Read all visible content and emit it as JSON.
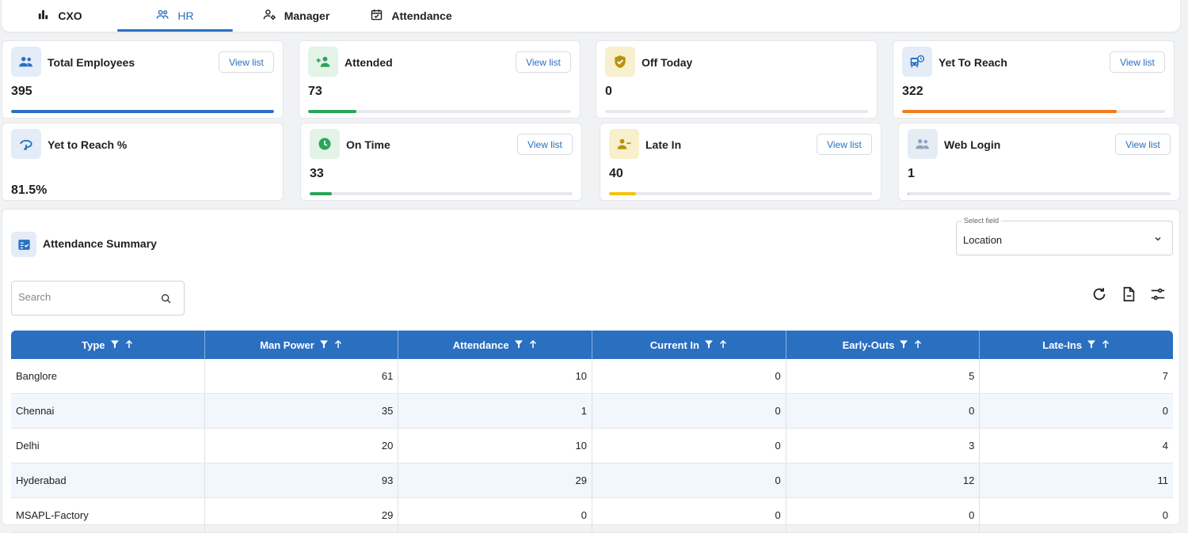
{
  "nav": {
    "tabs": [
      {
        "label": "CXO",
        "icon": "bar-chart-icon"
      },
      {
        "label": "HR",
        "icon": "people-icon"
      },
      {
        "label": "Manager",
        "icon": "manager-icon"
      },
      {
        "label": "Attendance",
        "icon": "calendar-check-icon"
      }
    ],
    "active": "HR"
  },
  "cards": [
    {
      "title": "Total Employees",
      "value": "395",
      "button": "View list",
      "progress": 1.0,
      "color": "#2a6fc0",
      "icon": "people-icon"
    },
    {
      "title": "Attended",
      "value": "73",
      "button": "View list",
      "progress": 0.185,
      "color": "#2aa55a",
      "icon": "person-add-icon"
    },
    {
      "title": "Off Today",
      "value": "0",
      "progress": 0.0,
      "color": "#b8930a",
      "icon": "shield-check-icon"
    },
    {
      "title": "Yet To Reach",
      "value": "322",
      "button": "View list",
      "progress": 0.815,
      "color": "#f07d1c",
      "icon": "bus-clock-icon"
    },
    {
      "title": "Yet to Reach %",
      "value": "81.5%",
      "color": "#2a6fc0",
      "icon": "route-icon"
    },
    {
      "title": "On Time",
      "value": "33",
      "button": "View list",
      "progress": 0.084,
      "color": "#2aa55a",
      "icon": "clock-icon"
    },
    {
      "title": "Late In",
      "value": "40",
      "button": "View list",
      "progress": 0.101,
      "color": "#f2c40f",
      "icon": "person-minus-icon"
    },
    {
      "title": "Web Login",
      "value": "1",
      "button": "View list",
      "progress": 0.003,
      "color": "#8fa3bf",
      "icon": "people-icon"
    }
  ],
  "summary": {
    "title": "Attendance Summary",
    "icon": "checklist-icon",
    "select": {
      "label": "Select field",
      "value": "Location"
    },
    "search": {
      "placeholder": "Search"
    },
    "tools": [
      "refresh-icon",
      "export-file-icon",
      "column-settings-icon"
    ],
    "columns": [
      "Type",
      "Man Power",
      "Attendance",
      "Current In",
      "Early-Outs",
      "Late-Ins"
    ],
    "rows": [
      [
        "Banglore",
        "61",
        "10",
        "0",
        "5",
        "7"
      ],
      [
        "Chennai",
        "35",
        "1",
        "0",
        "0",
        "0"
      ],
      [
        "Delhi",
        "20",
        "10",
        "0",
        "3",
        "4"
      ],
      [
        "Hyderabad",
        "93",
        "29",
        "0",
        "12",
        "11"
      ],
      [
        "MSAPL-Factory",
        "29",
        "0",
        "0",
        "0",
        "0"
      ]
    ]
  }
}
